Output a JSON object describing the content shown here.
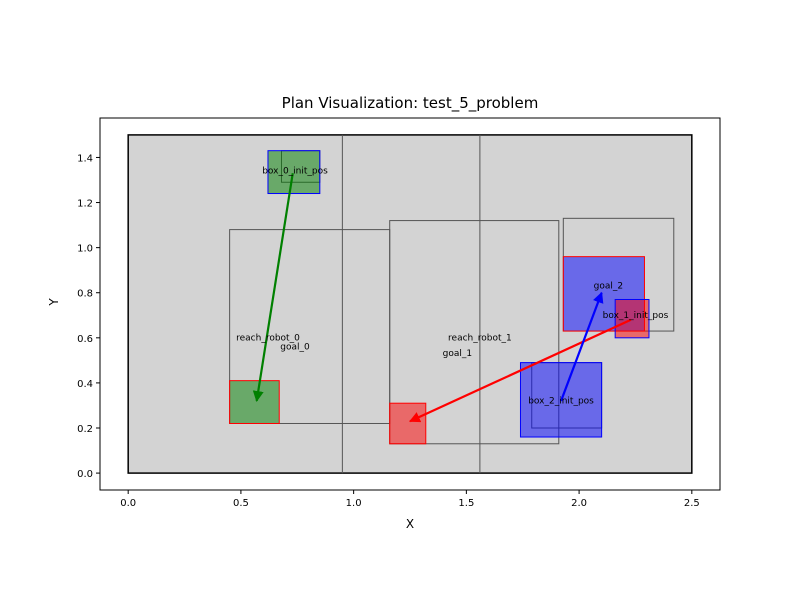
{
  "chart_data": {
    "type": "rect-plan",
    "title": "Plan Visualization: test_5_problem",
    "xlabel": "X",
    "ylabel": "Y",
    "xlim": [
      -0.125,
      2.625
    ],
    "ylim": [
      -0.075,
      1.575
    ],
    "x_ticks": [
      {
        "value": 0.0,
        "label": "0.0"
      },
      {
        "value": 0.5,
        "label": "0.5"
      },
      {
        "value": 1.0,
        "label": "1.0"
      },
      {
        "value": 1.5,
        "label": "1.5"
      },
      {
        "value": 2.0,
        "label": "2.0"
      },
      {
        "value": 2.5,
        "label": "2.5"
      }
    ],
    "y_ticks": [
      {
        "value": 0.0,
        "label": "0.0"
      },
      {
        "value": 0.2,
        "label": "0.2"
      },
      {
        "value": 0.4,
        "label": "0.4"
      },
      {
        "value": 0.6,
        "label": "0.6"
      },
      {
        "value": 0.8,
        "label": "0.8"
      },
      {
        "value": 1.0,
        "label": "1.0"
      },
      {
        "value": 1.2,
        "label": "1.2"
      },
      {
        "value": 1.4,
        "label": "1.4"
      }
    ],
    "grid": false,
    "legend": "none",
    "workspace": {
      "x0": 0.0,
      "y0": 0.0,
      "x1": 2.5,
      "y1": 1.5,
      "fill": "#d3d3d3",
      "stroke": "#000000"
    },
    "dividers": [
      0.95,
      1.56
    ],
    "rects": [
      {
        "name": "reach-robot-0-rect",
        "x0": 0.45,
        "y0": 0.22,
        "x1": 1.16,
        "y1": 1.08,
        "fill": "none",
        "stroke": "#555555",
        "opacity": 1
      },
      {
        "name": "reach-robot-1-rect",
        "x0": 1.16,
        "y0": 0.13,
        "x1": 1.91,
        "y1": 1.12,
        "fill": "none",
        "stroke": "#555555",
        "opacity": 1
      },
      {
        "name": "box-2-reach-rect",
        "x0": 1.79,
        "y0": 0.2,
        "x1": 2.1,
        "y1": 0.49,
        "fill": "none",
        "stroke": "#555555",
        "opacity": 1
      },
      {
        "name": "goal-2-reach-rect",
        "x0": 1.93,
        "y0": 0.63,
        "x1": 2.42,
        "y1": 1.13,
        "fill": "none",
        "stroke": "#555555",
        "opacity": 1
      },
      {
        "name": "box-0-reach-rect",
        "x0": 0.68,
        "y0": 1.29,
        "x1": 0.85,
        "y1": 1.43,
        "fill": "none",
        "stroke": "#555555",
        "opacity": 1
      },
      {
        "name": "goal-0-rect",
        "x0": 0.45,
        "y0": 0.22,
        "x1": 0.67,
        "y1": 0.41,
        "fill": "#008000",
        "stroke": "#ff0000",
        "opacity": 0.5
      },
      {
        "name": "goal-1-rect",
        "x0": 1.16,
        "y0": 0.13,
        "x1": 1.32,
        "y1": 0.31,
        "fill": "#ff0000",
        "stroke": "#ff0000",
        "opacity": 0.5
      },
      {
        "name": "goal-2-rect",
        "x0": 1.93,
        "y0": 0.63,
        "x1": 2.29,
        "y1": 0.96,
        "fill": "#0000ff",
        "stroke": "#ff0000",
        "opacity": 0.5
      },
      {
        "name": "box-0-init-rect",
        "x0": 0.62,
        "y0": 1.24,
        "x1": 0.85,
        "y1": 1.43,
        "fill": "#008000",
        "stroke": "#0000ff",
        "opacity": 0.5
      },
      {
        "name": "box-1-init-rect",
        "x0": 2.16,
        "y0": 0.6,
        "x1": 2.31,
        "y1": 0.77,
        "fill": "#ff0000",
        "stroke": "#0000ff",
        "opacity": 0.5
      },
      {
        "name": "box-2-init-rect",
        "x0": 1.74,
        "y0": 0.16,
        "x1": 2.1,
        "y1": 0.49,
        "fill": "#0000ff",
        "stroke": "#0000ff",
        "opacity": 0.5
      }
    ],
    "arrows": [
      {
        "name": "arrow-box-0",
        "from": [
          0.73,
          1.33
        ],
        "to": [
          0.57,
          0.32
        ],
        "color": "#008000"
      },
      {
        "name": "arrow-box-1",
        "from": [
          2.23,
          0.68
        ],
        "to": [
          1.25,
          0.23
        ],
        "color": "#ff0000"
      },
      {
        "name": "arrow-box-2",
        "from": [
          1.92,
          0.32
        ],
        "to": [
          2.1,
          0.8
        ],
        "color": "#0000ff"
      }
    ],
    "labels": [
      {
        "name": "label-box-0-init-pos",
        "text": "box_0_init_pos",
        "x": 0.74,
        "y": 1.34
      },
      {
        "name": "label-reach-robot-0",
        "text": "reach_robot_0",
        "x": 0.62,
        "y": 0.6
      },
      {
        "name": "label-goal-0",
        "text": "goal_0",
        "x": 0.74,
        "y": 0.56
      },
      {
        "name": "label-reach-robot-1",
        "text": "reach_robot_1",
        "x": 1.56,
        "y": 0.6
      },
      {
        "name": "label-goal-1",
        "text": "goal_1",
        "x": 1.46,
        "y": 0.53
      },
      {
        "name": "label-goal-2",
        "text": "goal_2",
        "x": 2.13,
        "y": 0.83
      },
      {
        "name": "label-box-1-init-pos",
        "text": "box_1_init_pos",
        "x": 2.25,
        "y": 0.7
      },
      {
        "name": "label-box-2-init-pos",
        "text": "box_2_init_pos",
        "x": 1.92,
        "y": 0.32
      }
    ]
  }
}
